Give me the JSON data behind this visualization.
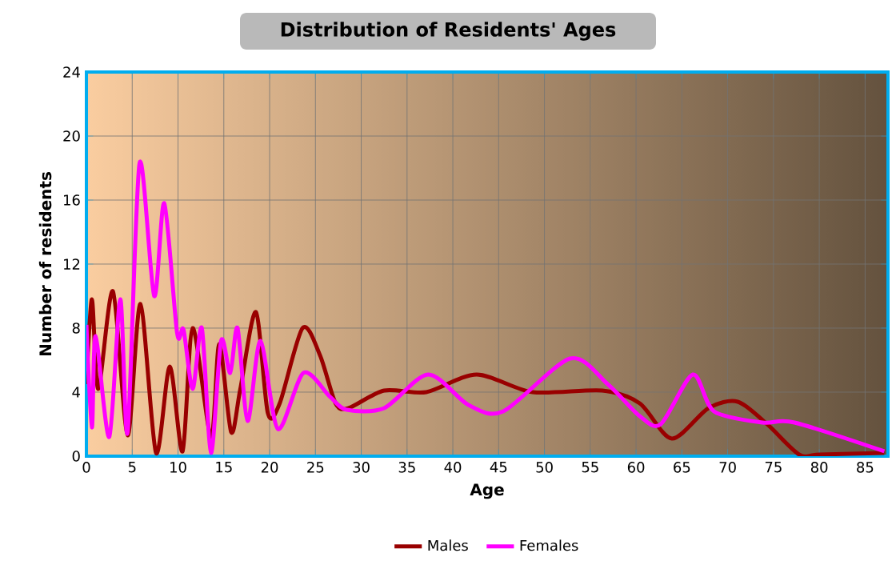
{
  "chart_data": {
    "type": "line",
    "title": "Distribution of Residents' Ages",
    "xlabel": "Age",
    "ylabel": "Number of residents",
    "xlim": [
      0,
      87.5
    ],
    "ylim": [
      0,
      24
    ],
    "xticks": [
      0,
      5,
      10,
      15,
      20,
      25,
      30,
      35,
      40,
      45,
      50,
      55,
      60,
      65,
      70,
      75,
      80,
      85
    ],
    "yticks": [
      0,
      4,
      8,
      12,
      16,
      20,
      24
    ],
    "grid": true,
    "legend": "bottom",
    "marker": "none",
    "line_style": "solid",
    "series": [
      {
        "name": "Males",
        "color": "#990000",
        "x": [
          0,
          0.6,
          1.3,
          2.9,
          4.5,
          5.9,
          7.6,
          9.1,
          10.5,
          11.6,
          13.6,
          14.5,
          15.8,
          16.8,
          18.5,
          19.8,
          21.1,
          23.6,
          25.5,
          27.2,
          28.6,
          32.5,
          37.1,
          42.6,
          48.7,
          56.3,
          60.4,
          63.9,
          67.9,
          71.1,
          74.3,
          77.8,
          80,
          87.1
        ],
        "values": [
          4.5,
          9.8,
          4.2,
          10.3,
          1.3,
          9.5,
          0.2,
          5.6,
          0.3,
          8.0,
          1.2,
          7.0,
          1.5,
          4.2,
          9.0,
          2.7,
          3.3,
          8.0,
          6.3,
          3.3,
          3.0,
          4.1,
          4.0,
          5.1,
          4.0,
          4.1,
          3.3,
          1.1,
          3.0,
          3.4,
          2.0,
          0.1,
          0.1,
          0.2
        ]
      },
      {
        "name": "Females",
        "color": "#ff00ff",
        "x": [
          0,
          0.6,
          1.0,
          2.5,
          3.7,
          4.5,
          5.8,
          7.4,
          8.5,
          9.9,
          10.6,
          11.6,
          12.6,
          13.6,
          14.7,
          15.7,
          16.5,
          17.6,
          19.0,
          20.9,
          23.7,
          26.6,
          28.4,
          32.5,
          37.3,
          41.7,
          45.5,
          52.8,
          56.9,
          60.4,
          62.7,
          66.2,
          68.5,
          73.8,
          77.3,
          87.1
        ],
        "values": [
          8.2,
          1.8,
          7.5,
          1.2,
          9.8,
          1.5,
          18.3,
          10.0,
          15.8,
          7.7,
          7.9,
          4.2,
          8.0,
          0.2,
          7.2,
          5.2,
          8.0,
          2.2,
          7.2,
          1.7,
          5.2,
          3.7,
          2.9,
          3.0,
          5.1,
          3.2,
          2.8,
          6.1,
          4.5,
          2.5,
          2.0,
          5.1,
          2.8,
          2.1,
          2.1,
          0.3
        ]
      }
    ]
  }
}
